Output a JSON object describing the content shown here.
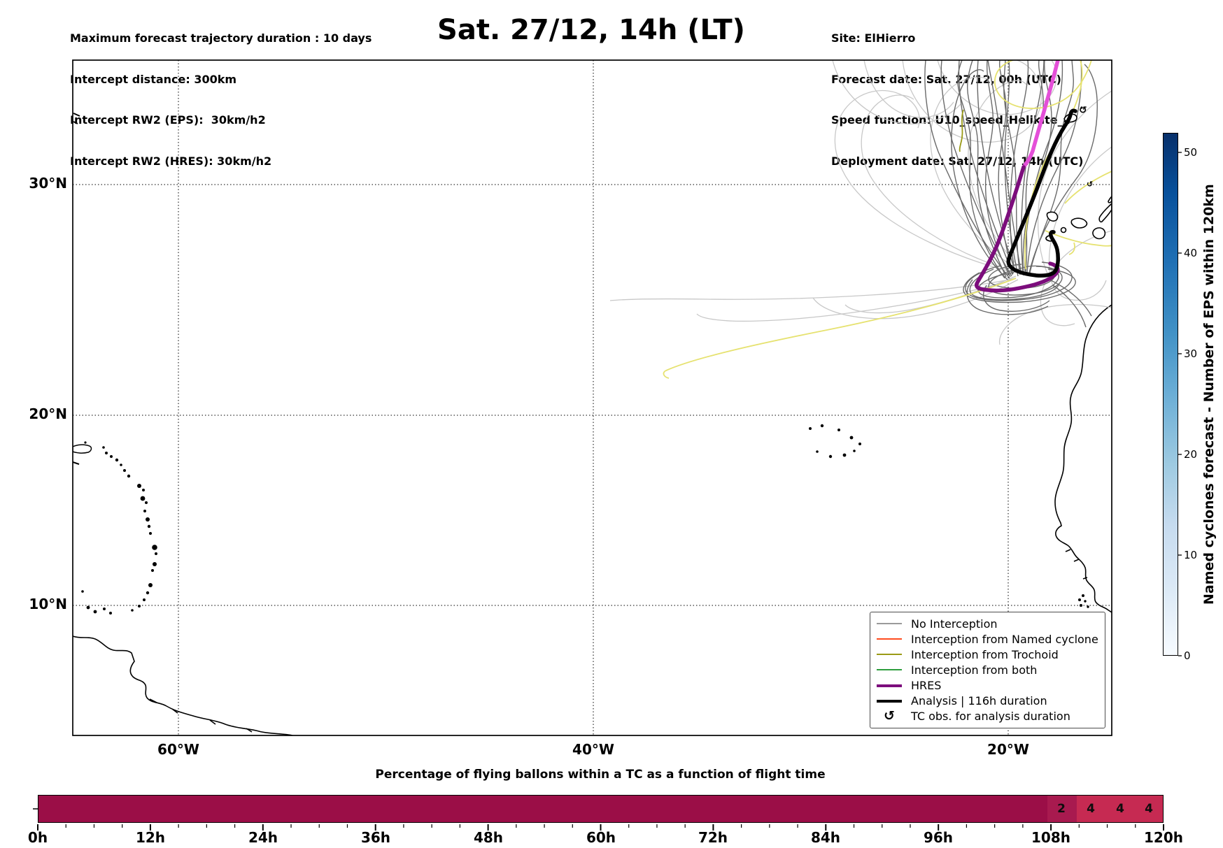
{
  "header_left": {
    "line1": "Maximum forecast trajectory duration : 10 days",
    "line2": "Intercept distance: 300km",
    "line3": "Intercept RW2 (EPS):  30km/h2",
    "line4": "Intercept RW2 (HRES): 30km/h2"
  },
  "title": "Sat. 27/12, 14h (LT)",
  "header_right": {
    "line1": "Site: ElHierro",
    "line2": "Forecast date: Sat. 27/12, 00h (UTC)",
    "line3": "Speed function: U10_speed_Helikite_4",
    "line4": "Deployment date: Sat. 27/12, 14h (UTC)"
  },
  "map": {
    "lat_labels": [
      "30°N",
      "20°N",
      "10°N"
    ],
    "lon_labels": [
      "60°W",
      "40°W",
      "20°W"
    ]
  },
  "legend": {
    "entries": [
      {
        "label": "No Interception",
        "color": "#9a9a9a"
      },
      {
        "label": "Interception from Named cyclone",
        "color": "#ff4c1f"
      },
      {
        "label": "Interception from Trochoid",
        "color": "#9a9a16"
      },
      {
        "label": "Interception from both",
        "color": "#2e9e3e"
      },
      {
        "label": "HRES",
        "color": "#7c0d7c"
      },
      {
        "label": "Analysis | 116h duration",
        "color": "#000000"
      },
      {
        "label": "TC obs. for analysis duration",
        "symbol": "↺"
      }
    ]
  },
  "colorbar": {
    "label": "Named cyclones forecast - Number of EPS within 120km",
    "tick_labels": [
      "50",
      "40",
      "30",
      "20",
      "10",
      "0"
    ],
    "colormap": "Blues",
    "vmin": 0,
    "vmax": 52
  },
  "balloon_bar": {
    "title": "Percentage of flying ballons within a TC as a function of flight time",
    "tick_labels": [
      "0h",
      "12h",
      "24h",
      "36h",
      "48h",
      "60h",
      "72h",
      "84h",
      "96h",
      "108h",
      "120h"
    ],
    "segment_labels": [
      "2",
      "4",
      "4",
      "4"
    ],
    "base_color": "#9b0e47",
    "segment2_color": "#a81a4f",
    "segment4_color": "#c62a52"
  },
  "chart_data": [
    {
      "type": "line",
      "title": "Sat. 27/12, 14h (LT)",
      "description": "Map of EPS balloon forecast trajectories deployed from El Hierro (Canary Islands), Atlantic sector with NW-Africa and Lesser Antilles coastlines",
      "x_ticks": [
        "60°W",
        "40°W",
        "20°W"
      ],
      "y_ticks": [
        "30°N",
        "20°N",
        "10°N"
      ],
      "lon_range_deg_west": [
        66.5,
        15
      ],
      "lat_range_deg_north": [
        3,
        35.5
      ],
      "grid": true,
      "legend_position": "lower right",
      "series": [
        {
          "name": "No Interception",
          "color": "#9a9a9a",
          "note": "~50 thin gray EPS member trajectories looping near the Canaries then fanning north; a few long westward arcs reaching ~45W"
        },
        {
          "name": "Interception from Named cyclone",
          "color": "#ff4c1f",
          "note": "no visible track on map"
        },
        {
          "name": "Interception from Trochoid",
          "color": "#9a9a16",
          "note": "one short olive segment near 22W, 31N"
        },
        {
          "name": "Interception from both",
          "color": "#2e9e3e",
          "note": "no visible track on map"
        },
        {
          "name": "HRES",
          "color": "#7c0d7c",
          "note": "thick track: loop south of El Hierro then heading north, recent portion drawn magenta, exits top near 17W"
        },
        {
          "name": "Analysis | 116h duration",
          "color": "#000000",
          "note": "thick black track: clockwise loop at the Canaries then NE toward Madeira"
        },
        {
          "name": "TC obs. for analysis duration",
          "symbol": "↺",
          "note": "small cyclone markers near Madeira and NE of the Canaries"
        }
      ],
      "colorbar": {
        "label": "Named cyclones forecast - Number of EPS within 120km",
        "ticks": [
          0,
          10,
          20,
          30,
          40,
          50
        ],
        "vmax": 52,
        "colormap": "Blues"
      }
    },
    {
      "type": "bar",
      "title": "Percentage of flying ballons within a TC as a function of flight time",
      "xlabel_ticks": [
        "0h",
        "12h",
        "24h",
        "36h",
        "48h",
        "60h",
        "72h",
        "84h",
        "96h",
        "108h",
        "120h"
      ],
      "x_range_hours": [
        0,
        120
      ],
      "segments": [
        {
          "from_h": 0,
          "to_h": 107.3,
          "value": 0,
          "label": ""
        },
        {
          "from_h": 107.3,
          "to_h": 110.5,
          "value": 2,
          "label": "2"
        },
        {
          "from_h": 110.5,
          "to_h": 113.7,
          "value": 4,
          "label": "4"
        },
        {
          "from_h": 113.7,
          "to_h": 116.8,
          "value": 4,
          "label": "4"
        },
        {
          "from_h": 116.8,
          "to_h": 120,
          "value": 4,
          "label": "4"
        }
      ]
    }
  ]
}
